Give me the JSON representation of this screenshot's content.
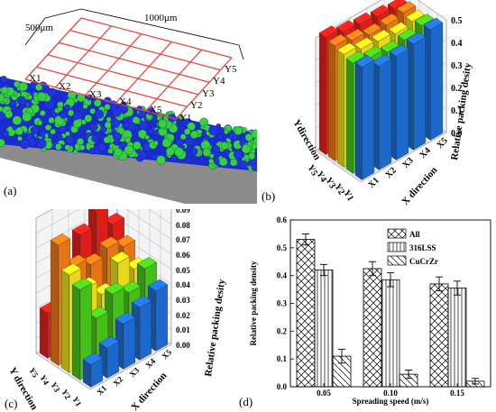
{
  "panel_a": {
    "label": "(a)",
    "dim_width": "1000μm",
    "dim_depth": "500μm",
    "x_labels": [
      "X1",
      "X2",
      "X3",
      "X4",
      "X5"
    ],
    "y_labels": [
      "Y1",
      "Y2",
      "Y3",
      "Y4",
      "Y5"
    ]
  },
  "panel_b": {
    "label": "(b)",
    "z_axis_label": "Relative packing desity",
    "y_axis_label": "Ydirection",
    "x_axis_label": "X direction",
    "z_ticks": [
      "0.0",
      "0.1",
      "0.2",
      "0.3",
      "0.4",
      "0.5"
    ],
    "y_ticks": [
      "Y5",
      "Y4",
      "Y3",
      "Y2",
      "Y1"
    ],
    "x_ticks": [
      "X1",
      "X2",
      "X3",
      "X4",
      "X5"
    ]
  },
  "panel_c": {
    "label": "(c)",
    "z_axis_label": "Relative packing desity",
    "y_axis_label": "Y direction",
    "x_axis_label": "X direction",
    "z_ticks": [
      "0.00",
      "0.01",
      "0.02",
      "0.03",
      "0.04",
      "0.05",
      "0.06",
      "0.07",
      "0.08",
      "0.09"
    ],
    "y_ticks": [
      "Y5",
      "Y4",
      "Y3",
      "Y2",
      "Y1"
    ],
    "x_ticks": [
      "X1",
      "X2",
      "X3",
      "X4",
      "X5"
    ]
  },
  "panel_d": {
    "label": "(d)"
  },
  "colors": {
    "red": "#e8201a",
    "orange": "#f37b16",
    "yellow": "#f2e41b",
    "green": "#49c81b",
    "blue": "#1f6fd6"
  },
  "chart_data": [
    {
      "type": "bar3d",
      "panel": "b",
      "x_categories": [
        "X1",
        "X2",
        "X3",
        "X4",
        "X5"
      ],
      "y_categories": [
        "Y1",
        "Y2",
        "Y3",
        "Y4",
        "Y5"
      ],
      "zlim": [
        0,
        0.5
      ],
      "values": [
        [
          0.5,
          0.46,
          0.46,
          0.47,
          0.49
        ],
        [
          0.49,
          0.47,
          0.45,
          0.46,
          0.48
        ],
        [
          0.5,
          0.48,
          0.47,
          0.46,
          0.47
        ],
        [
          0.51,
          0.49,
          0.47,
          0.47,
          0.48
        ],
        [
          0.52,
          0.5,
          0.49,
          0.48,
          0.47
        ]
      ],
      "zlabel": "Relative packing desity",
      "xlabel": "X direction",
      "ylabel": "Ydirection"
    },
    {
      "type": "bar3d",
      "panel": "c",
      "x_categories": [
        "X1",
        "X2",
        "X3",
        "X4",
        "X5"
      ],
      "y_categories": [
        "Y1",
        "Y2",
        "Y3",
        "Y4",
        "Y5"
      ],
      "zlim": [
        0,
        0.09
      ],
      "values": [
        [
          0.015,
          0.02,
          0.03,
          0.035,
          0.04
        ],
        [
          0.06,
          0.035,
          0.045,
          0.04,
          0.05
        ],
        [
          0.065,
          0.05,
          0.04,
          0.055,
          0.045
        ],
        [
          0.08,
          0.06,
          0.055,
          0.06,
          0.055
        ],
        [
          0.03,
          0.04,
          0.07,
          0.08,
          0.065
        ]
      ],
      "zlabel": "Relative packing desity",
      "xlabel": "X direction",
      "ylabel": "Y direction"
    },
    {
      "type": "bar",
      "panel": "d",
      "categories": [
        "0.05",
        "0.10",
        "0.15"
      ],
      "series": [
        {
          "name": "All",
          "values": [
            0.53,
            0.425,
            0.37
          ],
          "errors": [
            0.02,
            0.025,
            0.025
          ]
        },
        {
          "name": "316LSS",
          "values": [
            0.42,
            0.385,
            0.355
          ],
          "errors": [
            0.02,
            0.025,
            0.025
          ]
        },
        {
          "name": "CuCrZr",
          "values": [
            0.11,
            0.045,
            0.02
          ],
          "errors": [
            0.025,
            0.015,
            0.01
          ]
        }
      ],
      "xlabel": "Spreading speed (m/s)",
      "ylabel": "Relative packing density",
      "ylim": [
        0,
        0.6
      ],
      "yticks": [
        "0.0",
        "0.1",
        "0.2",
        "0.3",
        "0.4",
        "0.5",
        "0.6"
      ],
      "legend": "top-right"
    }
  ]
}
